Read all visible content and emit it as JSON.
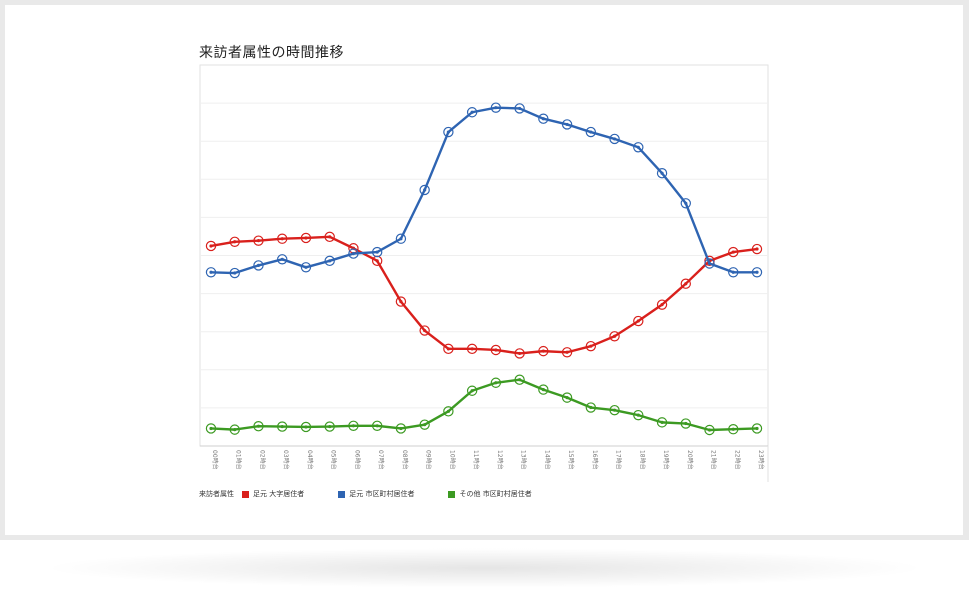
{
  "chart_data": {
    "type": "line",
    "title": "来訪者属性の時間推移",
    "categories": [
      "00時台",
      "01時台",
      "02時台",
      "03時台",
      "04時台",
      "05時台",
      "06時台",
      "07時台",
      "08時台",
      "09時台",
      "10時台",
      "11時台",
      "12時台",
      "13時台",
      "14時台",
      "15時台",
      "16時台",
      "17時台",
      "18時台",
      "19時台",
      "20時台",
      "21時台",
      "22時台",
      "23時台"
    ],
    "ylim": [
      0,
      100
    ],
    "grid": true,
    "legend_title": "来訪者属性",
    "legend_position": "bottom-left",
    "series": [
      {
        "name": "足元 大字居住者",
        "color": "#d9201c",
        "values": [
          52.5,
          53.6,
          53.9,
          54.4,
          54.6,
          54.9,
          51.9,
          48.6,
          37.9,
          30.3,
          25.5,
          25.5,
          25.2,
          24.3,
          24.9,
          24.6,
          26.2,
          28.8,
          32.8,
          37.1,
          42.6,
          48.6,
          50.9,
          51.7
        ]
      },
      {
        "name": "足元 市区町村居住者",
        "color": "#2e64b2",
        "values": [
          45.6,
          45.4,
          47.4,
          49.0,
          46.9,
          48.6,
          50.5,
          50.9,
          54.4,
          67.2,
          82.4,
          87.6,
          88.8,
          88.6,
          85.9,
          84.4,
          82.4,
          80.6,
          78.4,
          71.6,
          63.7,
          47.9,
          45.6,
          45.6
        ]
      },
      {
        "name": "その他 市区町村居住者",
        "color": "#3c9a22",
        "values": [
          4.6,
          4.3,
          5.2,
          5.1,
          5.0,
          5.1,
          5.3,
          5.3,
          4.6,
          5.6,
          9.1,
          14.5,
          16.6,
          17.4,
          14.8,
          12.7,
          10.1,
          9.4,
          8.1,
          6.2,
          5.9,
          4.2,
          4.4,
          4.6
        ]
      }
    ]
  }
}
